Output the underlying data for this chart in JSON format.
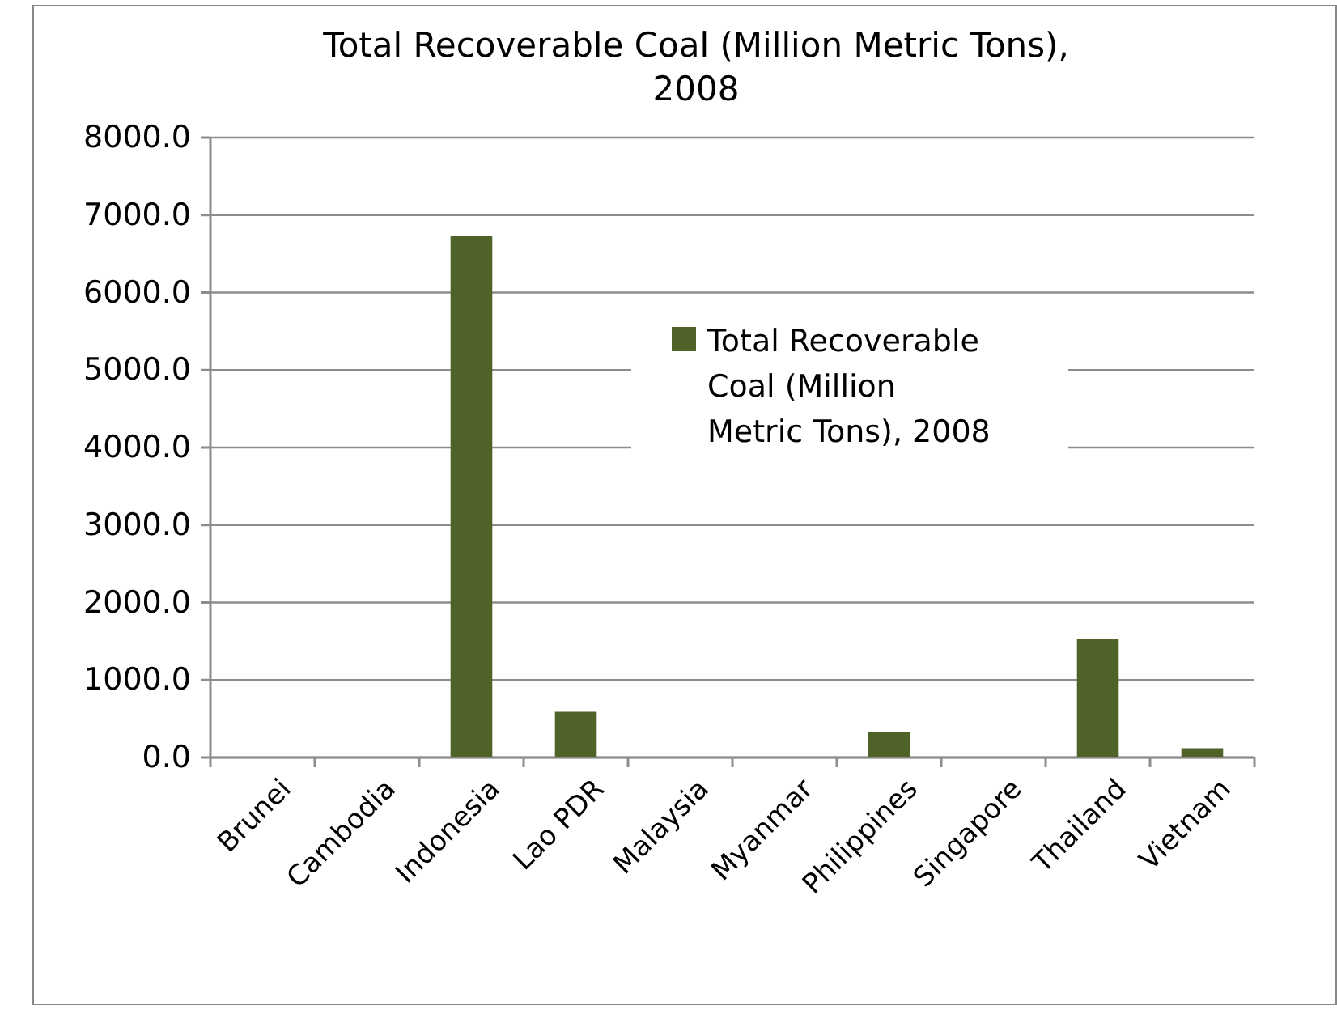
{
  "chart_data": {
    "type": "bar",
    "title": "Total Recoverable Coal (Million Metric Tons), 2008",
    "categories": [
      "Brunei",
      "Cambodia",
      "Indonesia",
      "Lao PDR",
      "Malaysia",
      "Myanmar",
      "Philippines",
      "Singapore",
      "Thailand",
      "Vietnam"
    ],
    "series": [
      {
        "name": "Total Recoverable Coal (Million Metric Tons), 2008",
        "color": "#4f6228",
        "values": [
          0,
          0,
          6730,
          590,
          0,
          0,
          330,
          0,
          1530,
          120
        ]
      }
    ],
    "ylim": [
      0,
      8000
    ],
    "yticks": [
      {
        "value": 0,
        "label": "0.0"
      },
      {
        "value": 1000,
        "label": "1000.0"
      },
      {
        "value": 2000,
        "label": "2000.0"
      },
      {
        "value": 3000,
        "label": "3000.0"
      },
      {
        "value": 4000,
        "label": "4000.0"
      },
      {
        "value": 5000,
        "label": "5000.0"
      },
      {
        "value": 6000,
        "label": "6000.0"
      },
      {
        "value": 7000,
        "label": "7000.0"
      },
      {
        "value": 8000,
        "label": "8000.0"
      }
    ],
    "grid": "y",
    "legend": "top right"
  }
}
